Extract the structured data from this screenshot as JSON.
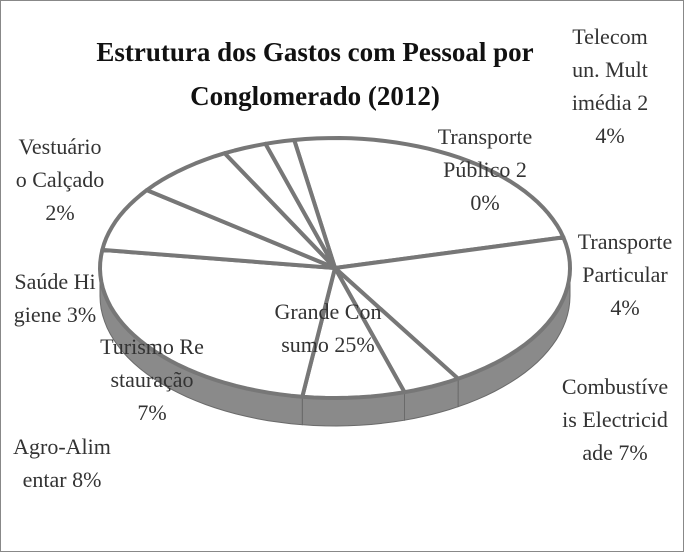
{
  "chart_data": {
    "type": "pie",
    "title": "Estrutura  dos Gastos com Pessoal por Conglomerado  (2012)",
    "categories": [
      "Telecomun. Multimédia",
      "Transporte Público",
      "Transporte Particular",
      "Combustíveis Electricidade",
      "Grande Consumo",
      "Agro-Alimentar",
      "Turismo Restauração",
      "Saúde Higiene",
      "Vestuário o Calçado"
    ],
    "values": [
      24,
      20,
      4,
      7,
      25,
      8,
      7,
      3,
      2
    ],
    "value_labels": [
      "24%",
      "20%",
      "4%",
      "7%",
      "25%",
      "8%",
      "7%",
      "3%",
      "2%"
    ],
    "color": "#ffffff"
  }
}
